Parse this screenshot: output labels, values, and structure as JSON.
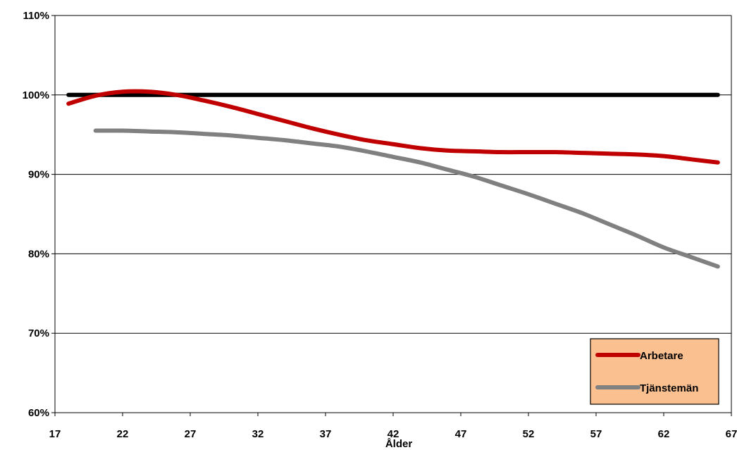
{
  "chart_data": {
    "type": "line",
    "xlabel": "Ålder",
    "ylabel": "",
    "xlim": [
      17,
      67
    ],
    "ylim": [
      60,
      110
    ],
    "x_ticks": [
      17,
      22,
      27,
      32,
      37,
      42,
      47,
      52,
      57,
      62,
      67
    ],
    "x_tick_labels": [
      "17",
      "22",
      "27",
      "32",
      "37",
      "42",
      "47",
      "52",
      "57",
      "62",
      "67"
    ],
    "y_ticks": [
      60,
      70,
      80,
      90,
      100,
      110
    ],
    "y_tick_labels": [
      "60%",
      "70%",
      "80%",
      "90%",
      "100%",
      "110%"
    ],
    "grid": "horizontal",
    "legend_position": "bottom-right",
    "reference_line": {
      "y": 100,
      "from_x": 18,
      "to_x": 66,
      "color": "#000000"
    },
    "series": [
      {
        "name": "Arbetare",
        "color": "#C00000",
        "x": [
          18,
          20,
          22,
          24,
          26,
          28,
          30,
          32,
          34,
          36,
          38,
          40,
          42,
          44,
          46,
          48,
          50,
          52,
          54,
          56,
          58,
          60,
          62,
          64,
          66
        ],
        "y": [
          98.9,
          99.9,
          100.4,
          100.4,
          100.0,
          99.3,
          98.5,
          97.6,
          96.7,
          95.8,
          95.0,
          94.3,
          93.8,
          93.3,
          93.0,
          92.9,
          92.8,
          92.8,
          92.8,
          92.7,
          92.6,
          92.5,
          92.3,
          91.9,
          91.5
        ]
      },
      {
        "name": "Tjänstemän",
        "color": "#808080",
        "x": [
          20,
          22,
          24,
          26,
          28,
          30,
          32,
          34,
          36,
          38,
          40,
          42,
          44,
          46,
          48,
          50,
          52,
          54,
          56,
          58,
          60,
          62,
          64,
          66
        ],
        "y": [
          95.5,
          95.5,
          95.4,
          95.3,
          95.1,
          94.9,
          94.6,
          94.3,
          93.9,
          93.5,
          92.9,
          92.2,
          91.5,
          90.6,
          89.7,
          88.6,
          87.5,
          86.3,
          85.1,
          83.7,
          82.3,
          80.8,
          79.6,
          78.4
        ]
      }
    ]
  }
}
